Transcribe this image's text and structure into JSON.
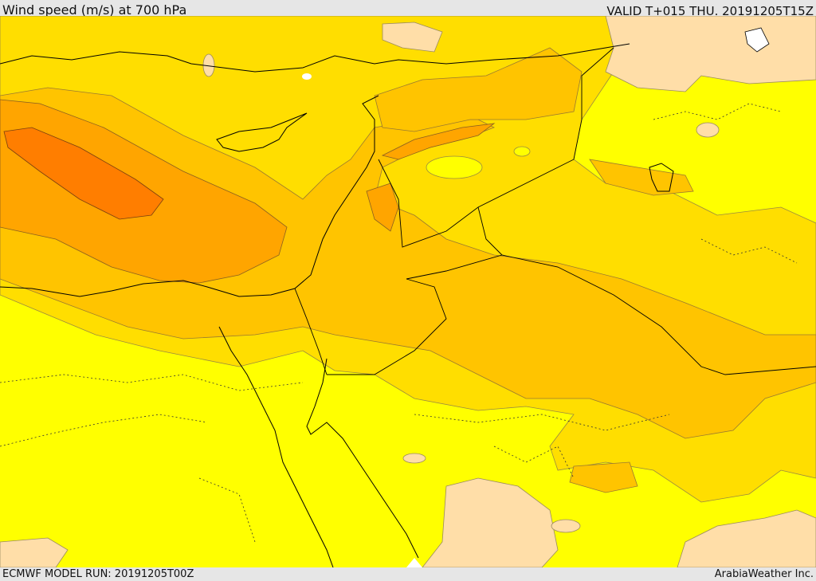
{
  "header": {
    "title": "Wind speed (m/s) at 700 hPa",
    "valid": "VALID T+015 THU. 20191205T15Z"
  },
  "footer": {
    "model_run": "ECMWF MODEL RUN: 20191205T00Z",
    "credit": "ArabiaWeather Inc."
  },
  "legend_colors": {
    "calm": "#ffdea8",
    "light": "#ffff00",
    "moderate": "#ffde00",
    "fresh": "#ffc400",
    "strong": "#ffa500",
    "very_strong": "#ff7e00"
  }
}
